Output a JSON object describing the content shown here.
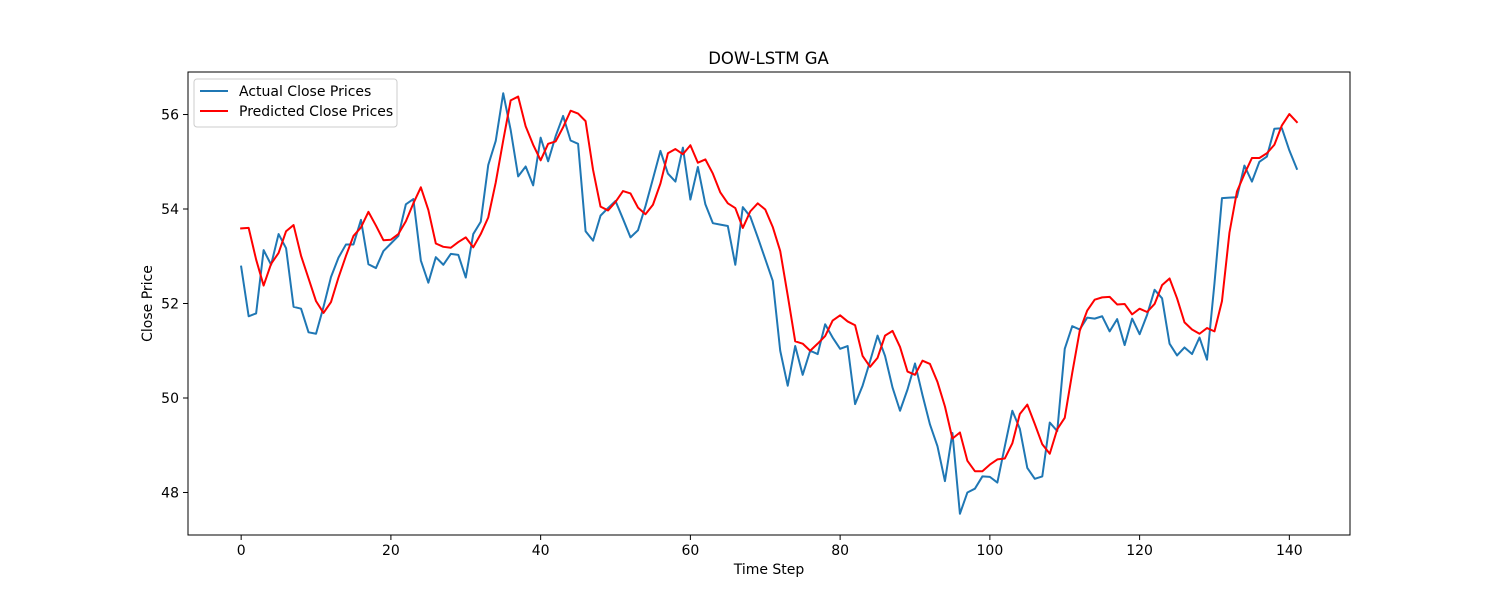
{
  "chart_data": {
    "type": "line",
    "title": "DOW-LSTM GA",
    "xlabel": "Time Step",
    "ylabel": "Close Price",
    "xlim": [
      -7.1,
      148.1
    ],
    "ylim": [
      47.1,
      56.9
    ],
    "xticks": [
      0,
      20,
      40,
      60,
      80,
      100,
      120,
      140
    ],
    "yticks": [
      48,
      50,
      52,
      54,
      56
    ],
    "grid": false,
    "legend": "upper-left",
    "series": [
      {
        "name": "Actual Close Prices",
        "color": "#1f77b4",
        "values": [
          52.78,
          51.73,
          51.79,
          53.13,
          52.82,
          53.47,
          53.17,
          51.93,
          51.89,
          51.39,
          51.36,
          51.93,
          52.56,
          52.97,
          53.25,
          53.25,
          53.77,
          52.83,
          52.75,
          53.11,
          53.27,
          53.43,
          54.1,
          54.21,
          52.91,
          52.44,
          52.98,
          52.82,
          53.05,
          53.03,
          52.55,
          53.47,
          53.73,
          54.93,
          55.44,
          56.45,
          55.67,
          54.69,
          54.9,
          54.5,
          55.51,
          55.01,
          55.54,
          55.97,
          55.45,
          55.38,
          53.53,
          53.33,
          53.86,
          54.02,
          54.17,
          53.79,
          53.4,
          53.55,
          54.06,
          54.64,
          55.23,
          54.75,
          54.58,
          55.3,
          54.2,
          54.89,
          54.1,
          53.7,
          53.67,
          53.64,
          52.82,
          54.04,
          53.84,
          53.4,
          52.94,
          52.48,
          51.0,
          50.26,
          51.1,
          50.49,
          51.0,
          50.93,
          51.56,
          51.28,
          51.04,
          51.1,
          49.87,
          50.26,
          50.78,
          51.32,
          50.89,
          50.22,
          49.73,
          50.18,
          50.73,
          50.06,
          49.44,
          48.98,
          48.24,
          49.26,
          47.55,
          48.0,
          48.08,
          48.34,
          48.33,
          48.21,
          48.98,
          49.73,
          49.35,
          48.52,
          48.29,
          48.34,
          49.48,
          49.3,
          51.04,
          51.52,
          51.45,
          51.7,
          51.68,
          51.73,
          51.41,
          51.67,
          51.12,
          51.68,
          51.35,
          51.76,
          52.29,
          52.11,
          51.15,
          50.9,
          51.07,
          50.93,
          51.28,
          50.81,
          52.43,
          54.23,
          54.24,
          54.25,
          54.92,
          54.58,
          55.0,
          55.11,
          55.7,
          55.71,
          55.24,
          54.85
        ]
      },
      {
        "name": "Predicted Close Prices",
        "color": "#ff0000",
        "values": [
          53.59,
          53.6,
          52.93,
          52.38,
          52.84,
          53.07,
          53.53,
          53.66,
          53.01,
          52.53,
          52.05,
          51.8,
          52.03,
          52.55,
          53.01,
          53.43,
          53.61,
          53.94,
          53.65,
          53.34,
          53.35,
          53.47,
          53.74,
          54.12,
          54.46,
          53.98,
          53.27,
          53.2,
          53.18,
          53.3,
          53.4,
          53.19,
          53.47,
          53.82,
          54.56,
          55.45,
          56.3,
          56.38,
          55.75,
          55.36,
          55.03,
          55.38,
          55.43,
          55.73,
          56.08,
          56.02,
          55.86,
          54.83,
          54.05,
          53.97,
          54.15,
          54.38,
          54.33,
          54.03,
          53.89,
          54.09,
          54.54,
          55.18,
          55.27,
          55.16,
          55.35,
          54.98,
          55.05,
          54.75,
          54.35,
          54.12,
          54.02,
          53.6,
          53.95,
          54.12,
          53.99,
          53.62,
          53.11,
          52.17,
          51.2,
          51.15,
          51.0,
          51.15,
          51.31,
          51.64,
          51.75,
          51.62,
          51.54,
          50.89,
          50.66,
          50.85,
          51.32,
          51.42,
          51.08,
          50.56,
          50.49,
          50.79,
          50.72,
          50.34,
          49.82,
          49.14,
          49.27,
          48.67,
          48.45,
          48.45,
          48.59,
          48.7,
          48.72,
          49.04,
          49.66,
          49.86,
          49.45,
          49.02,
          48.82,
          49.34,
          49.58,
          50.53,
          51.42,
          51.85,
          52.08,
          52.13,
          52.14,
          51.98,
          51.99,
          51.77,
          51.89,
          51.82,
          51.99,
          52.39,
          52.53,
          52.11,
          51.6,
          51.45,
          51.36,
          51.48,
          51.41,
          52.05,
          53.5,
          54.37,
          54.74,
          55.08,
          55.08,
          55.18,
          55.36,
          55.77,
          56.01,
          55.84
        ]
      }
    ]
  }
}
